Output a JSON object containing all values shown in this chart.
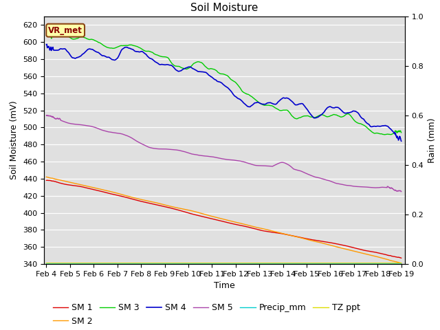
{
  "title": "Soil Moisture",
  "xlabel": "Time",
  "ylabel_left": "Soil Moisture (mV)",
  "ylabel_right": "Rain (mm)",
  "x_ticks": [
    "Feb 4",
    "Feb 5",
    "Feb 6",
    "Feb 7",
    "Feb 8",
    "Feb 9",
    "Feb 10",
    "Feb 11",
    "Feb 12",
    "Feb 13",
    "Feb 14",
    "Feb 15",
    "Feb 16",
    "Feb 17",
    "Feb 18",
    "Feb 19"
  ],
  "ylim_left": [
    340,
    630
  ],
  "ylim_right": [
    0.0,
    1.0
  ],
  "yticks_left": [
    340,
    360,
    380,
    400,
    420,
    440,
    460,
    480,
    500,
    520,
    540,
    560,
    580,
    600,
    620
  ],
  "yticks_right": [
    0.0,
    0.2,
    0.4,
    0.6,
    0.8,
    1.0
  ],
  "background_color": "#e0e0e0",
  "annotation_text": "VR_met",
  "series": {
    "SM1": {
      "color": "#dd0000",
      "label": "SM 1"
    },
    "SM2": {
      "color": "#ff9900",
      "label": "SM 2"
    },
    "SM3": {
      "color": "#00cc00",
      "label": "SM 3"
    },
    "SM4": {
      "color": "#0000cc",
      "label": "SM 4"
    },
    "SM5": {
      "color": "#aa44aa",
      "label": "SM 5"
    },
    "Precip_mm": {
      "color": "#00cccc",
      "label": "Precip_mm"
    },
    "TZ_ppt": {
      "color": "#dddd00",
      "label": "TZ ppt"
    }
  },
  "legend_fontsize": 9,
  "title_fontsize": 11
}
